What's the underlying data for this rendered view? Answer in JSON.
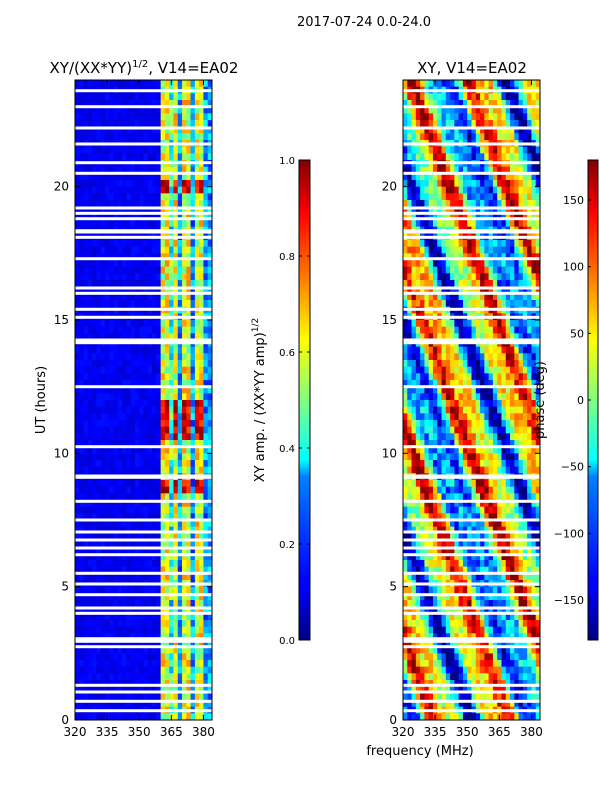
{
  "suptitle": "2017-07-24 0.0-24.0",
  "shared_xlabel": "frequency (MHz)",
  "chart_data": [
    {
      "type": "heatmap",
      "title": "XY/(XX*YY)$^{1/2}$, V14=EA02",
      "title_main": "XY/(XX*YY)",
      "title_sup": "1/2",
      "title_tail": ", V14=EA02",
      "xlabel": "frequency (MHz)",
      "ylabel": "UT (hours)",
      "xlim": [
        320,
        384
      ],
      "ylim": [
        0,
        24
      ],
      "xticks": [
        320,
        335,
        350,
        365,
        380
      ],
      "yticks": [
        0,
        5,
        10,
        15,
        20
      ],
      "colorbar": {
        "label": "XY amp. / (XX*YY amp)$^{1/2}$",
        "label_main": "XY amp. / (XX*YY amp)",
        "label_sup": "1/2",
        "range": [
          0.0,
          1.0
        ],
        "ticks": [
          "0.0",
          "0.2",
          "0.4",
          "0.6",
          "0.8",
          "1.0"
        ],
        "colormap": "jet"
      },
      "high_channels_mhz": [
        362,
        367,
        372,
        378
      ],
      "high_amp_intervals_hours": [
        [
          19.7,
          20.3
        ],
        [
          10.5,
          12.0
        ],
        [
          8.5,
          9.0
        ]
      ]
    },
    {
      "type": "heatmap",
      "title": "XY, V14=EA02",
      "xlabel": "frequency (MHz)",
      "ylabel": "",
      "xlim": [
        320,
        384
      ],
      "ylim": [
        0,
        24
      ],
      "xticks": [
        320,
        335,
        350,
        365,
        380
      ],
      "yticks": [
        0,
        5,
        10,
        15,
        20
      ],
      "colorbar": {
        "label": "phase (deg)",
        "range": [
          -180,
          180
        ],
        "ticks": [
          "−150",
          "−100",
          "−50",
          "0",
          "50",
          "100",
          "150"
        ],
        "tick_values": [
          -150,
          -100,
          -50,
          0,
          50,
          100,
          150
        ],
        "colormap": "jet"
      }
    }
  ],
  "flagged_hours": [
    0.35,
    0.7,
    1.05,
    1.3,
    2.75,
    2.95,
    3.05,
    4.0,
    4.2,
    4.7,
    5.1,
    5.5,
    6.2,
    6.45,
    6.75,
    7.05,
    7.5,
    8.2,
    9.1,
    9.15,
    10.25,
    12.5,
    14.15,
    14.25,
    15.1,
    15.4,
    16.0,
    16.2,
    17.3,
    18.1,
    18.3,
    18.35,
    18.8,
    19.0,
    19.2,
    20.5,
    20.9,
    21.6,
    22.2,
    23.0,
    23.6
  ]
}
